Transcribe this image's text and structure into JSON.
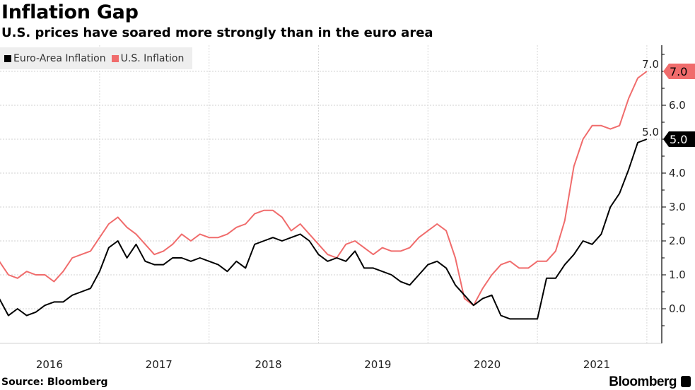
{
  "header": {
    "title": "Inflation Gap",
    "subtitle": "U.S. prices have soared more strongly than in the euro area"
  },
  "footer": {
    "source": "Source: Bloomberg",
    "brand": "Bloomberg"
  },
  "chart_data": {
    "type": "line",
    "title": "Inflation Gap",
    "subtitle": "U.S. prices have soared more strongly than in the euro area",
    "xlabel": "",
    "ylabel": "",
    "x_start": "2016-01",
    "x_frequency": "monthly",
    "x_tick_labels": [
      "2016",
      "2017",
      "2018",
      "2019",
      "2020",
      "2021"
    ],
    "y_tick_labels": [
      "0.0",
      "1.0",
      "2.0",
      "3.0",
      "4.0",
      "5.0",
      "6.0",
      "7.0"
    ],
    "y_ticks": [
      0,
      1,
      2,
      3,
      4,
      5,
      6,
      7
    ],
    "ylim": [
      -1,
      7.8
    ],
    "y_axis_side": "right",
    "grid": true,
    "legend_position": "top-left",
    "series": [
      {
        "name": "Euro-Area Inflation",
        "color": "#000000",
        "last_value_label": "5.0",
        "values": [
          0.3,
          -0.2,
          0.0,
          -0.2,
          -0.1,
          0.1,
          0.2,
          0.2,
          0.4,
          0.5,
          0.6,
          1.1,
          1.8,
          2.0,
          1.5,
          1.9,
          1.4,
          1.3,
          1.3,
          1.5,
          1.5,
          1.4,
          1.5,
          1.4,
          1.3,
          1.1,
          1.4,
          1.2,
          1.9,
          2.0,
          2.1,
          2.0,
          2.1,
          2.2,
          2.0,
          1.6,
          1.4,
          1.5,
          1.4,
          1.7,
          1.2,
          1.2,
          1.1,
          1.0,
          0.8,
          0.7,
          1.0,
          1.3,
          1.4,
          1.2,
          0.7,
          0.4,
          0.1,
          0.3,
          0.4,
          -0.2,
          -0.3,
          -0.3,
          -0.3,
          -0.3,
          0.9,
          0.9,
          1.3,
          1.6,
          2.0,
          1.9,
          2.2,
          3.0,
          3.4,
          4.1,
          4.9,
          5.0
        ]
      },
      {
        "name": "U.S. Inflation",
        "color": "#f06c6c",
        "last_value_label": "7.0",
        "values": [
          1.4,
          1.0,
          0.9,
          1.1,
          1.0,
          1.0,
          0.8,
          1.1,
          1.5,
          1.6,
          1.7,
          2.1,
          2.5,
          2.7,
          2.4,
          2.2,
          1.9,
          1.6,
          1.7,
          1.9,
          2.2,
          2.0,
          2.2,
          2.1,
          2.1,
          2.2,
          2.4,
          2.5,
          2.8,
          2.9,
          2.9,
          2.7,
          2.3,
          2.5,
          2.2,
          1.9,
          1.6,
          1.5,
          1.9,
          2.0,
          1.8,
          1.6,
          1.8,
          1.7,
          1.7,
          1.8,
          2.1,
          2.3,
          2.5,
          2.3,
          1.5,
          0.3,
          0.1,
          0.6,
          1.0,
          1.3,
          1.4,
          1.2,
          1.2,
          1.4,
          1.4,
          1.7,
          2.6,
          4.2,
          5.0,
          5.4,
          5.4,
          5.3,
          5.4,
          6.2,
          6.8,
          7.0
        ]
      }
    ]
  }
}
